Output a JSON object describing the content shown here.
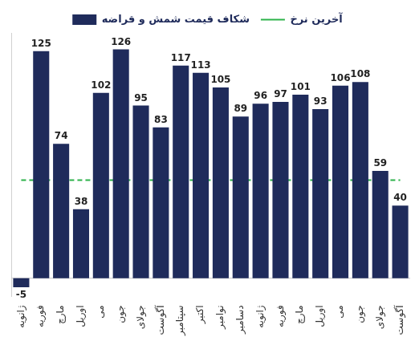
{
  "chart_data": {
    "type": "bar",
    "categories": [
      "ژانویه",
      "فوریه",
      "مارچ",
      "اوریل",
      "می",
      "جون",
      "جولای",
      "آگوست",
      "سپتامبر",
      "اکتبر",
      "نوامبر",
      "دسامبر",
      "ژانویه",
      "فوریه",
      "مارچ",
      "اوریل",
      "می",
      "جون",
      "جولای",
      "آگوست"
    ],
    "series": [
      {
        "name": "شکاف قیمت شمش و قراضه",
        "type": "bar",
        "color": "#1f2b5b",
        "data_labels": true,
        "values": [
          -5,
          125,
          74,
          38,
          102,
          126,
          95,
          83,
          117,
          113,
          105,
          89,
          96,
          97,
          101,
          93,
          106,
          108,
          59,
          40
        ]
      },
      {
        "name": "آخرین نرخ",
        "type": "line",
        "color": "#2db24a",
        "line_style": "dashed",
        "values": [
          54,
          54,
          54,
          54,
          54,
          54,
          54,
          54,
          54,
          54,
          54,
          54,
          54,
          54,
          54,
          54,
          54,
          54,
          54,
          54
        ]
      }
    ],
    "ylim": [
      -10,
      135
    ],
    "grid": false,
    "legend": "top",
    "tick_labels": "x"
  }
}
